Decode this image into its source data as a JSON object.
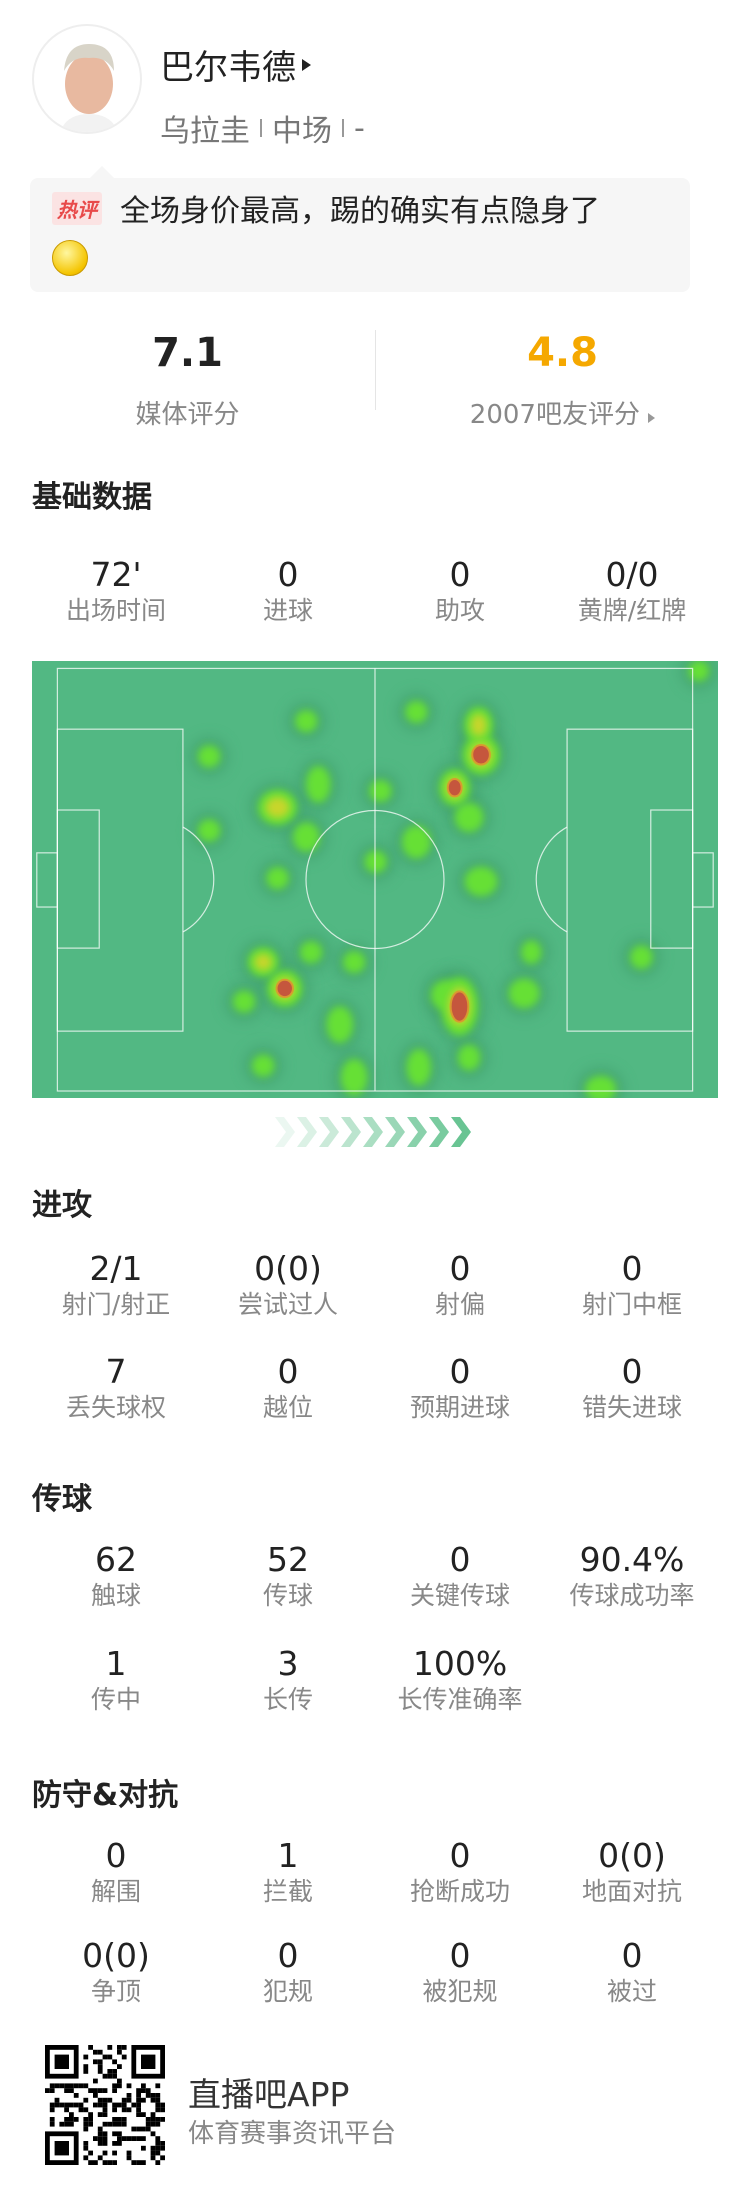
{
  "player": {
    "name": "巴尔韦德",
    "country": "乌拉圭",
    "position": "中场",
    "number": "-"
  },
  "comment": {
    "badge": "热评",
    "text": "全场身价最高，踢的确实有点隐身了",
    "emoji": "smile-emoji"
  },
  "ratings": {
    "media": {
      "value": "7.1",
      "label": "媒体评分"
    },
    "fans": {
      "value": "4.8",
      "label": "2007吧友评分",
      "color": "#f5a800"
    }
  },
  "sections": [
    {
      "title": "基础数据",
      "rows": [
        [
          {
            "v": "72'",
            "l": "出场时间"
          },
          {
            "v": "0",
            "l": "进球"
          },
          {
            "v": "0",
            "l": "助攻"
          },
          {
            "v": "0/0",
            "l": "黄牌/红牌"
          }
        ]
      ]
    },
    {
      "title": "进攻",
      "rows": [
        [
          {
            "v": "2/1",
            "l": "射门/射正"
          },
          {
            "v": "0(0)",
            "l": "尝试过人"
          },
          {
            "v": "0",
            "l": "射偏"
          },
          {
            "v": "0",
            "l": "射门中框"
          }
        ],
        [
          {
            "v": "7",
            "l": "丢失球权"
          },
          {
            "v": "0",
            "l": "越位"
          },
          {
            "v": "0",
            "l": "预期进球"
          },
          {
            "v": "0",
            "l": "错失进球"
          }
        ]
      ]
    },
    {
      "title": "传球",
      "rows": [
        [
          {
            "v": "62",
            "l": "触球"
          },
          {
            "v": "52",
            "l": "传球"
          },
          {
            "v": "0",
            "l": "关键传球"
          },
          {
            "v": "90.4%",
            "l": "传球成功率"
          }
        ],
        [
          {
            "v": "1",
            "l": "传中"
          },
          {
            "v": "3",
            "l": "长传"
          },
          {
            "v": "100%",
            "l": "长传准确率"
          }
        ]
      ]
    },
    {
      "title": "防守&对抗",
      "rows": [
        [
          {
            "v": "0",
            "l": "解围"
          },
          {
            "v": "1",
            "l": "拦截"
          },
          {
            "v": "0",
            "l": "抢断成功"
          },
          {
            "v": "0(0)",
            "l": "地面对抗"
          }
        ],
        [
          {
            "v": "0(0)",
            "l": "争顶"
          },
          {
            "v": "0",
            "l": "犯规"
          },
          {
            "v": "0",
            "l": "被犯规"
          },
          {
            "v": "0",
            "l": "被过"
          }
        ]
      ]
    }
  ],
  "heatmap": {
    "pitch_color": "#52b883",
    "direction": "attacking-right"
  },
  "footer": {
    "app_name": "直播吧APP",
    "tagline": "体育赛事资讯平台",
    "qr": "qr-code"
  }
}
